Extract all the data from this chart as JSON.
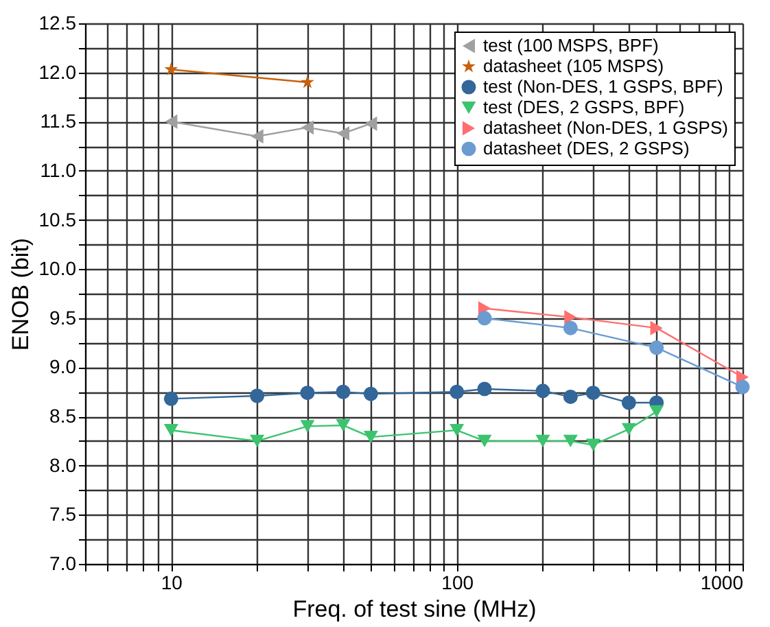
{
  "chart_data": {
    "type": "line",
    "xlabel": "Freq. of test sine (MHz)",
    "ylabel": "ENOB (bit)",
    "log": "x",
    "grid": true,
    "legend": "top right",
    "xlim": [
      5,
      1000
    ],
    "ylim": [
      7.0,
      12.5
    ],
    "xticks": [
      {
        "value": 5,
        "label": null
      },
      {
        "value": 6,
        "label": null
      },
      {
        "value": 7,
        "label": null
      },
      {
        "value": 8,
        "label": null
      },
      {
        "value": 9,
        "label": null
      },
      10,
      {
        "value": 20,
        "label": null
      },
      {
        "value": 30,
        "label": null
      },
      {
        "value": 40,
        "label": null
      },
      {
        "value": 50,
        "label": null
      },
      {
        "value": 60,
        "label": null
      },
      {
        "value": 70,
        "label": null
      },
      {
        "value": 80,
        "label": null
      },
      {
        "value": 90,
        "label": null
      },
      100,
      {
        "value": 200,
        "label": null
      },
      {
        "value": 300,
        "label": null
      },
      {
        "value": 400,
        "label": null
      },
      {
        "value": 500,
        "label": null
      },
      {
        "value": 600,
        "label": null
      },
      {
        "value": 700,
        "label": null
      },
      {
        "value": 800,
        "label": null
      },
      {
        "value": 900,
        "label": null
      },
      1000
    ],
    "yticks": [
      {
        "value": 7.0,
        "label": "7.0"
      },
      {
        "value": 7.25,
        "label": null
      },
      {
        "value": 7.5,
        "label": "7.5"
      },
      {
        "value": 7.75,
        "label": null
      },
      {
        "value": 8.0,
        "label": "8.0"
      },
      {
        "value": 8.25,
        "label": null
      },
      {
        "value": 8.5,
        "label": "8.5"
      },
      {
        "value": 8.75,
        "label": null
      },
      {
        "value": 9.0,
        "label": "9.0"
      },
      {
        "value": 9.25,
        "label": null
      },
      {
        "value": 9.5,
        "label": "9.5"
      },
      {
        "value": 9.75,
        "label": null
      },
      {
        "value": 10.0,
        "label": "10.0"
      },
      {
        "value": 10.25,
        "label": null
      },
      {
        "value": 10.5,
        "label": "10.5"
      },
      {
        "value": 10.75,
        "label": null
      },
      {
        "value": 11.0,
        "label": "11.0"
      },
      {
        "value": 11.25,
        "label": null
      },
      {
        "value": 11.5,
        "label": "11.5"
      },
      {
        "value": 11.75,
        "label": null
      },
      {
        "value": 12.0,
        "label": "12.0"
      },
      {
        "value": 12.25,
        "label": null
      },
      {
        "value": 12.5,
        "label": "12.5"
      }
    ],
    "series": [
      {
        "name": "test (100 MSPS, BPF)",
        "color": "#a0a0a0",
        "marker": "triangle-left",
        "x": [
          10,
          20,
          30,
          40,
          50
        ],
        "values": [
          11.5,
          11.35,
          11.44,
          11.38,
          11.48
        ]
      },
      {
        "name": "datasheet (105 MSPS)",
        "color": "#c8600a",
        "marker": "star",
        "x": [
          10,
          30
        ],
        "values": [
          12.03,
          11.9
        ]
      },
      {
        "name": "test (Non-DES, 1 GSPS, BPF)",
        "color": "#336699",
        "marker": "circle",
        "x": [
          10,
          20,
          30,
          40,
          50,
          100,
          125,
          200,
          250,
          300,
          400,
          500
        ],
        "values": [
          8.68,
          8.71,
          8.74,
          8.75,
          8.73,
          8.75,
          8.78,
          8.76,
          8.7,
          8.74,
          8.64,
          8.64
        ]
      },
      {
        "name": "test (DES, 2 GSPS, BPF)",
        "color": "#3cc36e",
        "marker": "triangle-down",
        "x": [
          10,
          20,
          30,
          40,
          50,
          100,
          125,
          200,
          250,
          300,
          400,
          500
        ],
        "values": [
          8.36,
          8.25,
          8.4,
          8.41,
          8.29,
          8.36,
          8.25,
          8.25,
          8.25,
          8.21,
          8.37,
          8.55
        ]
      },
      {
        "name": "datasheet (Non-DES, 1 GSPS)",
        "color": "#ff6f6f",
        "marker": "triangle-right",
        "x": [
          125,
          250,
          500,
          1000
        ],
        "values": [
          9.6,
          9.51,
          9.4,
          8.9
        ]
      },
      {
        "name": "datasheet (DES, 2 GSPS)",
        "color": "#6a9bd1",
        "marker": "circle",
        "x": [
          125,
          250,
          500,
          1000
        ],
        "values": [
          9.5,
          9.4,
          9.2,
          8.8
        ]
      }
    ]
  }
}
